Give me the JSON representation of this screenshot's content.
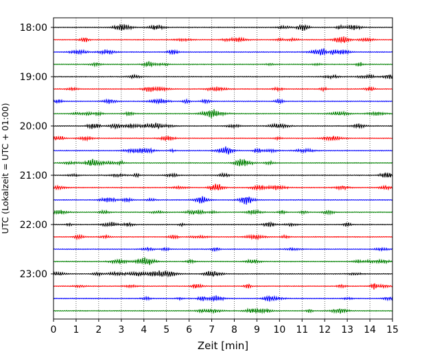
{
  "chart_data": {
    "type": "line",
    "title": "",
    "xlabel": "Zeit  [min]",
    "ylabel": "UTC (Lokalzeit = UTC + 01:00)",
    "xlim": [
      0,
      15
    ],
    "x_ticks": [
      "0",
      "1",
      "2",
      "3",
      "4",
      "5",
      "6",
      "7",
      "8",
      "9",
      "10",
      "11",
      "12",
      "13",
      "14",
      "15"
    ],
    "y_tick_labels": [
      "18:00",
      "19:00",
      "20:00",
      "21:00",
      "22:00",
      "23:00"
    ],
    "grid": "vertical dotted lines at each minute",
    "trace_interval_minutes": 15,
    "trace_start": "18:00",
    "trace_count": 24,
    "color_cycle": [
      "#000000",
      "#ff0000",
      "#0000ff",
      "#008000"
    ]
  }
}
